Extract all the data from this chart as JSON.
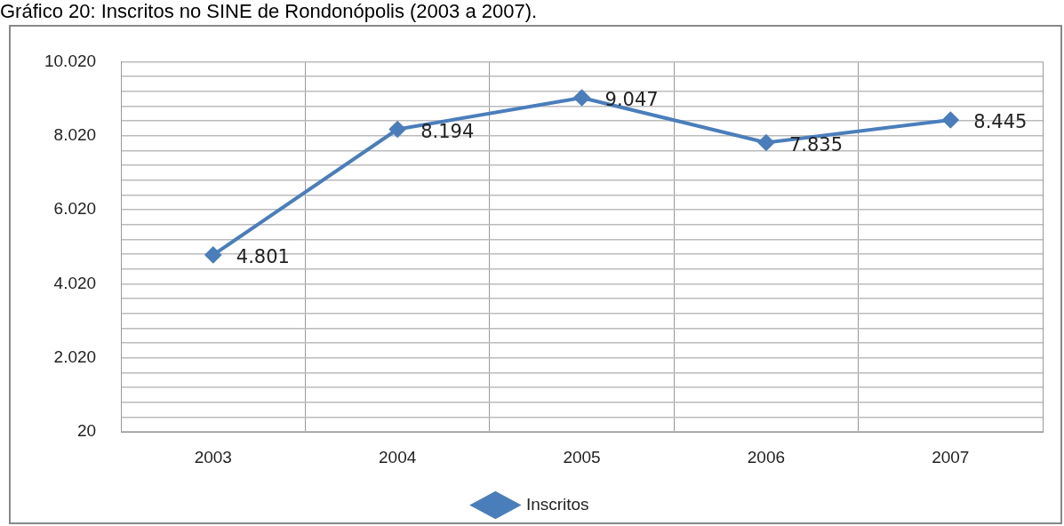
{
  "chart_data": {
    "type": "line",
    "title": "Gráfico 20: Inscritos no SINE de Rondonópolis (2003 a 2007).",
    "categories": [
      "2003",
      "2004",
      "2005",
      "2006",
      "2007"
    ],
    "series": [
      {
        "name": "Inscritos",
        "color": "#4a7ebb",
        "values": [
          4801,
          8194,
          9047,
          7835,
          8445
        ],
        "value_labels": [
          "4.801",
          "8.194",
          "9.047",
          "7.835",
          "8.445"
        ]
      }
    ],
    "ylim": [
      20,
      10020
    ],
    "yticks": [
      {
        "value": 20,
        "label": "20"
      },
      {
        "value": 420,
        "label": null
      },
      {
        "value": 820,
        "label": null
      },
      {
        "value": 1220,
        "label": null
      },
      {
        "value": 1620,
        "label": null
      },
      {
        "value": 2020,
        "label": "2.020"
      },
      {
        "value": 2420,
        "label": null
      },
      {
        "value": 2820,
        "label": null
      },
      {
        "value": 3220,
        "label": null
      },
      {
        "value": 3620,
        "label": null
      },
      {
        "value": 4020,
        "label": "4.020"
      },
      {
        "value": 4420,
        "label": null
      },
      {
        "value": 4820,
        "label": null
      },
      {
        "value": 5220,
        "label": null
      },
      {
        "value": 5620,
        "label": null
      },
      {
        "value": 6020,
        "label": "6.020"
      },
      {
        "value": 6420,
        "label": null
      },
      {
        "value": 6820,
        "label": null
      },
      {
        "value": 7220,
        "label": null
      },
      {
        "value": 7620,
        "label": null
      },
      {
        "value": 8020,
        "label": "8.020"
      },
      {
        "value": 8420,
        "label": null
      },
      {
        "value": 8820,
        "label": null
      },
      {
        "value": 9220,
        "label": null
      },
      {
        "value": 9620,
        "label": null
      },
      {
        "value": 10020,
        "label": "10.020"
      }
    ],
    "grid": true,
    "legend": "bottom",
    "marker": "diamond",
    "line_style": "solid"
  }
}
